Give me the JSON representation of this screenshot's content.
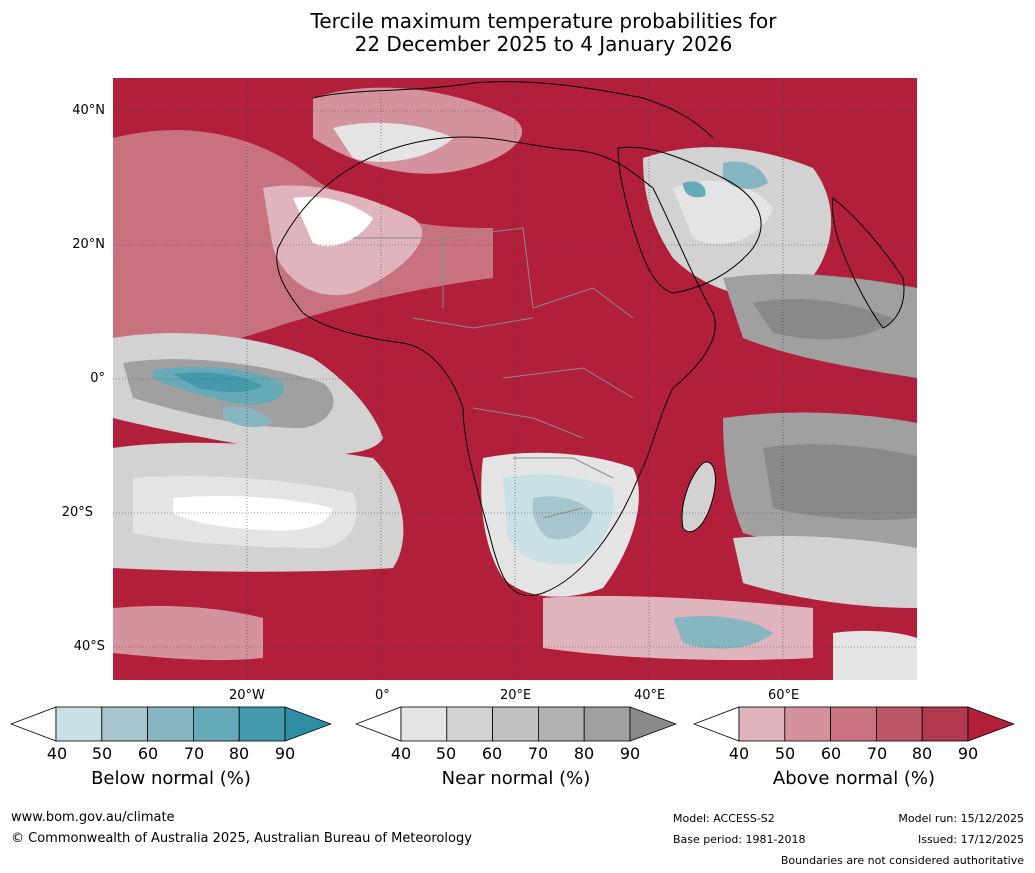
{
  "title": {
    "line1": "Tercile maximum temperature probabilities for",
    "line2": "22 December 2025 to 4 January 2026"
  },
  "map": {
    "lat_labels": [
      "40°N",
      "20°N",
      "0°",
      "20°S",
      "40°S"
    ],
    "lon_labels": [
      "20°W",
      "0°",
      "20°E",
      "40°E",
      "60°E"
    ]
  },
  "legend": {
    "below": {
      "title": "Below normal (%)",
      "ticks": [
        "40",
        "50",
        "60",
        "70",
        "80",
        "90"
      ],
      "colors": [
        "#ffffff",
        "#c9e0e6",
        "#a7c5cc",
        "#86b6c2",
        "#66a9b7",
        "#4499ad",
        "#2f8ea4"
      ]
    },
    "near": {
      "title": "Near normal (%)",
      "ticks": [
        "40",
        "50",
        "60",
        "70",
        "80",
        "90"
      ],
      "colors": [
        "#ffffff",
        "#e4e4e4",
        "#d2d2d2",
        "#c2c2c2",
        "#b1b1b1",
        "#a0a0a0",
        "#898989"
      ]
    },
    "above": {
      "title": "Above normal (%)",
      "ticks": [
        "40",
        "50",
        "60",
        "70",
        "80",
        "90"
      ],
      "colors": [
        "#ffffff",
        "#e0b4bc",
        "#d4929d",
        "#c8727f",
        "#bd5667",
        "#b23a4f",
        "#b21f3a"
      ]
    }
  },
  "footer": {
    "website": "www.bom.gov.au/climate",
    "copyright": "© Commonwealth of Australia 2025, Australian Bureau of Meteorology",
    "model": "Model: ACCESS-S2",
    "base_period": "Base period: 1981-2018",
    "model_run": "Model run: 15/12/2025",
    "issued": "Issued: 17/12/2025",
    "disclaimer": "Boundaries are not considered authoritative"
  }
}
